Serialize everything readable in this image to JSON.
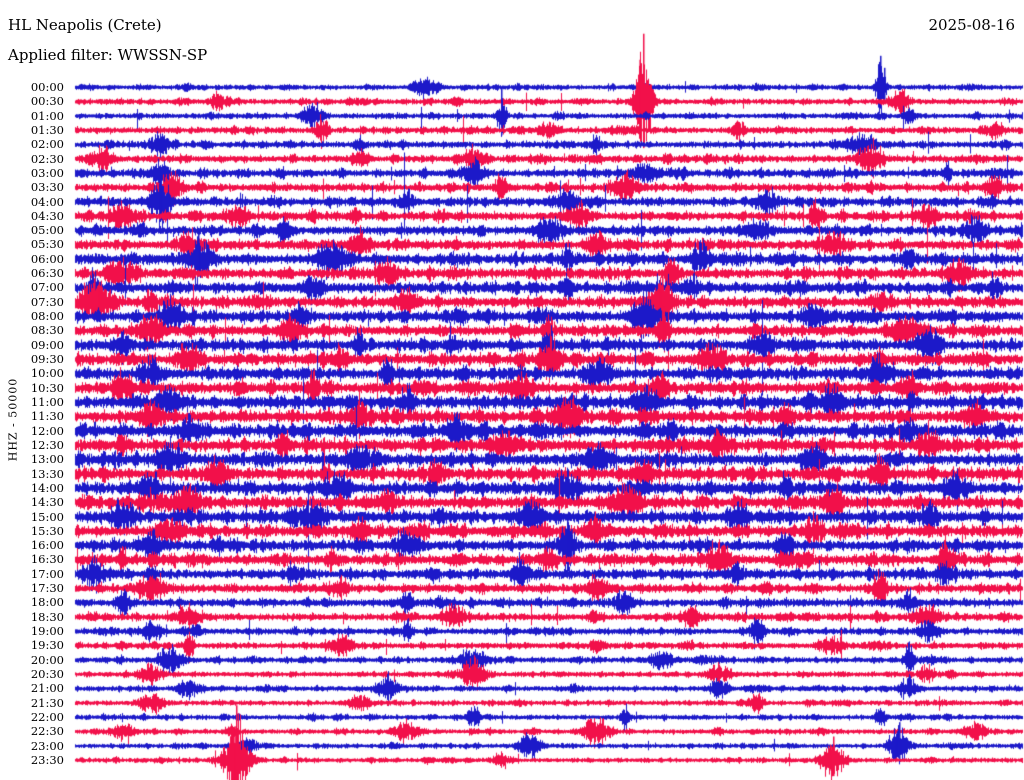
{
  "header": {
    "title": "HL Neapolis (Crete)",
    "date": "2025-08-16",
    "filter": "Applied filter: WWSSN-SP"
  },
  "axis": {
    "scale_label": "HHZ - 50000",
    "tick_interval_minutes": 30
  },
  "chart_data": {
    "type": "seismogram_helicorder",
    "station": "HL Neapolis (Crete)",
    "channel_and_scale": "HHZ - 50000",
    "date": "2025-08-16",
    "filter": "WWSSN-SP",
    "trace_interval_minutes": 30,
    "colors": {
      "blue": "#1c19c9",
      "red": "#f2104a"
    },
    "render_seed": 20250816,
    "rows": [
      {
        "time": "00:00",
        "color": "blue",
        "activity": 2.2,
        "events": [
          [
            0.37,
            8
          ],
          [
            0.6,
            6
          ],
          [
            0.85,
            24
          ]
        ]
      },
      {
        "time": "00:30",
        "color": "red",
        "activity": 2.6,
        "events": [
          [
            0.15,
            9
          ],
          [
            0.6,
            52
          ],
          [
            0.87,
            12
          ]
        ]
      },
      {
        "time": "01:00",
        "color": "blue",
        "activity": 2.4,
        "events": [
          [
            0.25,
            13
          ],
          [
            0.45,
            22
          ],
          [
            0.88,
            9
          ]
        ]
      },
      {
        "time": "01:30",
        "color": "red",
        "activity": 2.8,
        "events": [
          [
            0.26,
            13
          ],
          [
            0.5,
            8
          ],
          [
            0.7,
            9
          ],
          [
            0.97,
            8
          ]
        ]
      },
      {
        "time": "02:00",
        "color": "blue",
        "activity": 3.0,
        "events": [
          [
            0.09,
            10
          ],
          [
            0.3,
            9
          ],
          [
            0.55,
            8
          ],
          [
            0.83,
            9
          ]
        ]
      },
      {
        "time": "02:30",
        "color": "red",
        "activity": 3.2,
        "events": [
          [
            0.03,
            10
          ],
          [
            0.3,
            8
          ],
          [
            0.42,
            10
          ],
          [
            0.84,
            16
          ]
        ]
      },
      {
        "time": "03:00",
        "color": "blue",
        "activity": 3.4,
        "events": [
          [
            0.09,
            14
          ],
          [
            0.42,
            12
          ],
          [
            0.6,
            9
          ],
          [
            0.92,
            10
          ]
        ]
      },
      {
        "time": "03:30",
        "color": "red",
        "activity": 3.6,
        "events": [
          [
            0.1,
            12
          ],
          [
            0.45,
            14
          ],
          [
            0.58,
            12
          ],
          [
            0.97,
            10
          ]
        ]
      },
      {
        "time": "04:00",
        "color": "blue",
        "activity": 3.8,
        "events": [
          [
            0.09,
            20
          ],
          [
            0.35,
            10
          ],
          [
            0.52,
            12
          ],
          [
            0.73,
            10
          ]
        ]
      },
      {
        "time": "04:30",
        "color": "red",
        "activity": 4.0,
        "events": [
          [
            0.05,
            12
          ],
          [
            0.17,
            10
          ],
          [
            0.53,
            12
          ],
          [
            0.78,
            10
          ],
          [
            0.9,
            10
          ]
        ]
      },
      {
        "time": "05:00",
        "color": "blue",
        "activity": 4.2,
        "events": [
          [
            0.22,
            12
          ],
          [
            0.5,
            14
          ],
          [
            0.72,
            10
          ],
          [
            0.95,
            12
          ]
        ]
      },
      {
        "time": "05:30",
        "color": "red",
        "activity": 4.4,
        "events": [
          [
            0.12,
            12
          ],
          [
            0.3,
            10
          ],
          [
            0.55,
            14
          ],
          [
            0.8,
            12
          ]
        ]
      },
      {
        "time": "06:00",
        "color": "blue",
        "activity": 4.6,
        "events": [
          [
            0.13,
            20
          ],
          [
            0.27,
            16
          ],
          [
            0.52,
            12
          ],
          [
            0.66,
            14
          ],
          [
            0.88,
            10
          ]
        ]
      },
      {
        "time": "06:30",
        "color": "red",
        "activity": 4.6,
        "events": [
          [
            0.05,
            14
          ],
          [
            0.33,
            12
          ],
          [
            0.63,
            16
          ],
          [
            0.93,
            12
          ]
        ]
      },
      {
        "time": "07:00",
        "color": "blue",
        "activity": 4.8,
        "events": [
          [
            0.02,
            16
          ],
          [
            0.25,
            12
          ],
          [
            0.52,
            14
          ],
          [
            0.65,
            12
          ],
          [
            0.97,
            14
          ]
        ]
      },
      {
        "time": "07:30",
        "color": "red",
        "activity": 4.8,
        "events": [
          [
            0.02,
            18
          ],
          [
            0.08,
            14
          ],
          [
            0.35,
            10
          ],
          [
            0.62,
            20
          ],
          [
            0.85,
            12
          ]
        ]
      },
      {
        "time": "08:00",
        "color": "blue",
        "activity": 5.0,
        "events": [
          [
            0.1,
            14
          ],
          [
            0.24,
            12
          ],
          [
            0.6,
            16
          ],
          [
            0.78,
            12
          ]
        ]
      },
      {
        "time": "08:30",
        "color": "red",
        "activity": 5.0,
        "events": [
          [
            0.08,
            16
          ],
          [
            0.23,
            12
          ],
          [
            0.5,
            12
          ],
          [
            0.62,
            18
          ],
          [
            0.88,
            12
          ]
        ]
      },
      {
        "time": "09:00",
        "color": "blue",
        "activity": 5.2,
        "events": [
          [
            0.05,
            12
          ],
          [
            0.3,
            14
          ],
          [
            0.5,
            16
          ],
          [
            0.73,
            12
          ],
          [
            0.9,
            14
          ]
        ]
      },
      {
        "time": "09:30",
        "color": "red",
        "activity": 5.2,
        "events": [
          [
            0.12,
            14
          ],
          [
            0.28,
            12
          ],
          [
            0.5,
            16
          ],
          [
            0.67,
            12
          ],
          [
            0.85,
            12
          ]
        ]
      },
      {
        "time": "10:00",
        "color": "blue",
        "activity": 5.4,
        "events": [
          [
            0.08,
            14
          ],
          [
            0.33,
            12
          ],
          [
            0.55,
            14
          ],
          [
            0.85,
            16
          ]
        ]
      },
      {
        "time": "10:30",
        "color": "red",
        "activity": 5.4,
        "events": [
          [
            0.05,
            12
          ],
          [
            0.25,
            14
          ],
          [
            0.47,
            12
          ],
          [
            0.62,
            12
          ],
          [
            0.88,
            14
          ]
        ]
      },
      {
        "time": "11:00",
        "color": "blue",
        "activity": 5.6,
        "events": [
          [
            0.1,
            14
          ],
          [
            0.35,
            16
          ],
          [
            0.6,
            12
          ],
          [
            0.8,
            12
          ]
        ]
      },
      {
        "time": "11:30",
        "color": "red",
        "activity": 5.6,
        "events": [
          [
            0.08,
            12
          ],
          [
            0.3,
            12
          ],
          [
            0.52,
            16
          ],
          [
            0.75,
            14
          ],
          [
            0.95,
            12
          ]
        ]
      },
      {
        "time": "12:00",
        "color": "blue",
        "activity": 5.8,
        "events": [
          [
            0.12,
            14
          ],
          [
            0.4,
            12
          ],
          [
            0.63,
            14
          ],
          [
            0.88,
            12
          ]
        ]
      },
      {
        "time": "12:30",
        "color": "red",
        "activity": 5.8,
        "events": [
          [
            0.05,
            12
          ],
          [
            0.22,
            14
          ],
          [
            0.45,
            12
          ],
          [
            0.68,
            16
          ],
          [
            0.9,
            12
          ]
        ]
      },
      {
        "time": "13:00",
        "color": "blue",
        "activity": 5.8,
        "events": [
          [
            0.1,
            16
          ],
          [
            0.3,
            12
          ],
          [
            0.55,
            12
          ],
          [
            0.78,
            14
          ]
        ]
      },
      {
        "time": "13:30",
        "color": "red",
        "activity": 5.8,
        "events": [
          [
            0.15,
            12
          ],
          [
            0.38,
            14
          ],
          [
            0.6,
            12
          ],
          [
            0.85,
            12
          ]
        ]
      },
      {
        "time": "14:00",
        "color": "blue",
        "activity": 5.6,
        "events": [
          [
            0.08,
            14
          ],
          [
            0.28,
            16
          ],
          [
            0.52,
            12
          ],
          [
            0.75,
            12
          ],
          [
            0.93,
            14
          ]
        ]
      },
      {
        "time": "14:30",
        "color": "red",
        "activity": 5.6,
        "events": [
          [
            0.12,
            12
          ],
          [
            0.33,
            12
          ],
          [
            0.58,
            14
          ],
          [
            0.8,
            12
          ]
        ]
      },
      {
        "time": "15:00",
        "color": "blue",
        "activity": 5.4,
        "events": [
          [
            0.05,
            14
          ],
          [
            0.25,
            12
          ],
          [
            0.48,
            16
          ],
          [
            0.7,
            12
          ],
          [
            0.9,
            12
          ]
        ]
      },
      {
        "time": "15:30",
        "color": "red",
        "activity": 5.2,
        "events": [
          [
            0.1,
            12
          ],
          [
            0.3,
            14
          ],
          [
            0.55,
            12
          ],
          [
            0.78,
            14
          ]
        ]
      },
      {
        "time": "16:00",
        "color": "blue",
        "activity": 5.0,
        "events": [
          [
            0.08,
            12
          ],
          [
            0.35,
            12
          ],
          [
            0.52,
            20
          ],
          [
            0.75,
            12
          ]
        ]
      },
      {
        "time": "16:30",
        "color": "red",
        "activity": 4.8,
        "events": [
          [
            0.05,
            12
          ],
          [
            0.27,
            12
          ],
          [
            0.5,
            12
          ],
          [
            0.68,
            14
          ],
          [
            0.92,
            16
          ]
        ]
      },
      {
        "time": "17:00",
        "color": "blue",
        "activity": 4.4,
        "events": [
          [
            0.02,
            14
          ],
          [
            0.23,
            12
          ],
          [
            0.47,
            14
          ],
          [
            0.7,
            10
          ],
          [
            0.92,
            10
          ]
        ]
      },
      {
        "time": "17:30",
        "color": "red",
        "activity": 4.0,
        "events": [
          [
            0.08,
            12
          ],
          [
            0.28,
            10
          ],
          [
            0.55,
            12
          ],
          [
            0.85,
            14
          ]
        ]
      },
      {
        "time": "18:00",
        "color": "blue",
        "activity": 3.8,
        "events": [
          [
            0.05,
            10
          ],
          [
            0.35,
            12
          ],
          [
            0.58,
            10
          ],
          [
            0.88,
            12
          ]
        ]
      },
      {
        "time": "18:30",
        "color": "red",
        "activity": 3.4,
        "events": [
          [
            0.12,
            10
          ],
          [
            0.4,
            10
          ],
          [
            0.65,
            12
          ],
          [
            0.9,
            10
          ]
        ]
      },
      {
        "time": "19:00",
        "color": "blue",
        "activity": 3.0,
        "events": [
          [
            0.08,
            8
          ],
          [
            0.35,
            10
          ],
          [
            0.72,
            16
          ],
          [
            0.9,
            8
          ]
        ]
      },
      {
        "time": "19:30",
        "color": "red",
        "activity": 2.8,
        "events": [
          [
            0.12,
            16
          ],
          [
            0.28,
            8
          ],
          [
            0.55,
            8
          ],
          [
            0.8,
            8
          ]
        ]
      },
      {
        "time": "20:00",
        "color": "blue",
        "activity": 2.6,
        "events": [
          [
            0.1,
            14
          ],
          [
            0.42,
            10
          ],
          [
            0.62,
            8
          ],
          [
            0.88,
            14
          ]
        ]
      },
      {
        "time": "20:30",
        "color": "red",
        "activity": 2.4,
        "events": [
          [
            0.08,
            8
          ],
          [
            0.42,
            14
          ],
          [
            0.68,
            8
          ],
          [
            0.9,
            8
          ]
        ]
      },
      {
        "time": "21:00",
        "color": "blue",
        "activity": 2.4,
        "events": [
          [
            0.12,
            8
          ],
          [
            0.33,
            10
          ],
          [
            0.68,
            8
          ],
          [
            0.88,
            10
          ]
        ]
      },
      {
        "time": "21:30",
        "color": "red",
        "activity": 2.2,
        "events": [
          [
            0.08,
            10
          ],
          [
            0.3,
            8
          ],
          [
            0.72,
            12
          ]
        ]
      },
      {
        "time": "22:00",
        "color": "blue",
        "activity": 2.2,
        "events": [
          [
            0.42,
            12
          ],
          [
            0.58,
            10
          ],
          [
            0.85,
            8
          ]
        ]
      },
      {
        "time": "22:30",
        "color": "red",
        "activity": 2.2,
        "events": [
          [
            0.05,
            8
          ],
          [
            0.35,
            8
          ],
          [
            0.55,
            14
          ],
          [
            0.95,
            10
          ]
        ]
      },
      {
        "time": "23:00",
        "color": "blue",
        "activity": 2.0,
        "events": [
          [
            0.18,
            8
          ],
          [
            0.48,
            12
          ],
          [
            0.87,
            18
          ]
        ]
      },
      {
        "time": "23:30",
        "color": "red",
        "activity": 2.0,
        "events": [
          [
            0.17,
            42
          ],
          [
            0.45,
            8
          ],
          [
            0.8,
            18
          ]
        ]
      }
    ]
  }
}
